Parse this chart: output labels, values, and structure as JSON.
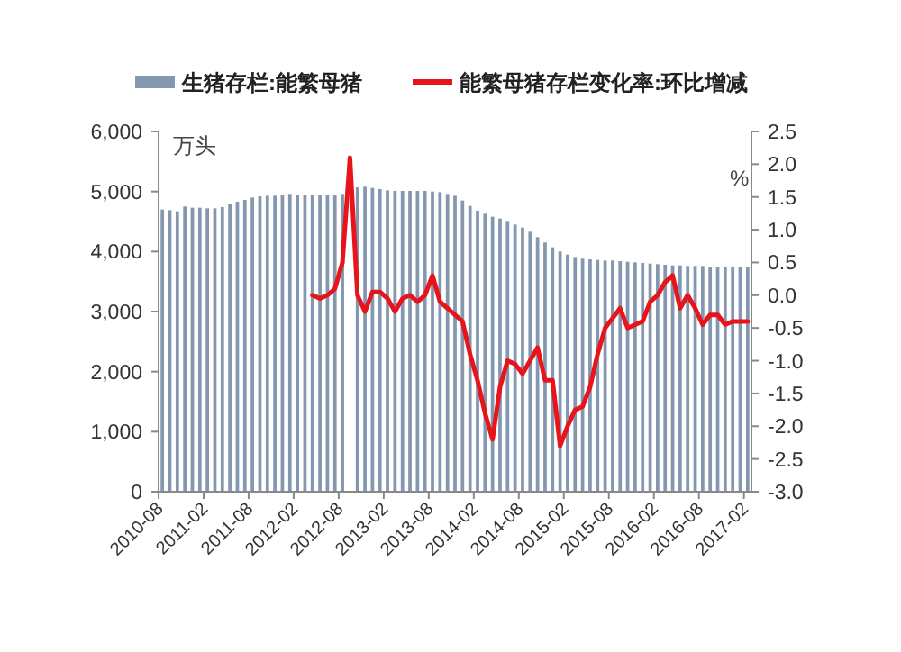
{
  "chart_data": {
    "type": "bar",
    "legend": "top",
    "grid": false,
    "ylabel": "万头",
    "y2label": "%",
    "categories": [
      "2010-08",
      null,
      null,
      null,
      null,
      null,
      "2011-02",
      null,
      null,
      null,
      null,
      null,
      "2011-08",
      null,
      null,
      null,
      null,
      null,
      "2012-02",
      null,
      null,
      null,
      null,
      null,
      "2012-08",
      null,
      null,
      null,
      null,
      null,
      "2013-02",
      null,
      null,
      null,
      null,
      null,
      "2013-08",
      null,
      null,
      null,
      null,
      null,
      "2014-02",
      null,
      null,
      null,
      null,
      null,
      "2014-08",
      null,
      null,
      null,
      null,
      null,
      "2015-02",
      null,
      null,
      null,
      null,
      null,
      "2015-08",
      null,
      null,
      null,
      null,
      null,
      "2016-02",
      null,
      null,
      null,
      null,
      null,
      "2016-08",
      null,
      null,
      null,
      null,
      null,
      "2017-02"
    ],
    "ylim": [
      0,
      6000
    ],
    "yticks": [
      {
        "value": 0,
        "label": "0"
      },
      {
        "value": 1000,
        "label": "1,000"
      },
      {
        "value": 2000,
        "label": "2,000"
      },
      {
        "value": 3000,
        "label": "3,000"
      },
      {
        "value": 4000,
        "label": "4,000"
      },
      {
        "value": 5000,
        "label": "5,000"
      },
      {
        "value": 6000,
        "label": "6,000"
      }
    ],
    "y2lim": [
      -3.0,
      2.5
    ],
    "y2ticks": [
      {
        "value": -3,
        "label": "-3.0"
      },
      {
        "value": -2.5,
        "label": "-2.5"
      },
      {
        "value": -2,
        "label": "-2.0"
      },
      {
        "value": -1.5,
        "label": "-1.5"
      },
      {
        "value": -1,
        "label": "-1.0"
      },
      {
        "value": -0.5,
        "label": "-0.5"
      },
      {
        "value": 0,
        "label": "0.0"
      },
      {
        "value": 0.5,
        "label": "0.5"
      },
      {
        "value": 1,
        "label": "1.0"
      },
      {
        "value": 1.5,
        "label": "1.5"
      },
      {
        "value": 2,
        "label": "2.0"
      },
      {
        "value": 2.5,
        "label": "2.5"
      }
    ],
    "series": [
      {
        "name": "生猪存栏:能繁母猪",
        "color": "#8497b0",
        "values": [
          4700,
          4690,
          4670,
          4750,
          4730,
          4730,
          4720,
          4720,
          4740,
          4800,
          4830,
          4860,
          4900,
          4920,
          4930,
          4930,
          4950,
          4960,
          4950,
          4940,
          4950,
          4950,
          4940,
          4950,
          4960,
          null,
          5070,
          5080,
          5060,
          5040,
          5020,
          5010,
          5010,
          5010,
          5010,
          5010,
          5000,
          4990,
          4960,
          4930,
          4850,
          4760,
          4680,
          4630,
          4580,
          4550,
          4510,
          4450,
          4400,
          4330,
          4240,
          4150,
          4070,
          4000,
          3950,
          3910,
          3880,
          3870,
          3860,
          3850,
          3850,
          3840,
          3830,
          3820,
          3810,
          3800,
          3790,
          3780,
          3770,
          3770,
          3760,
          3760,
          3760,
          3750,
          3750,
          3750,
          3740,
          3740,
          3740
        ]
      },
      {
        "name": "能繁母猪存栏变化率:环比增减",
        "type": "line",
        "axis": "y2",
        "color": "#e8141b",
        "values": [
          null,
          null,
          null,
          null,
          null,
          null,
          null,
          null,
          null,
          null,
          null,
          null,
          null,
          null,
          null,
          null,
          null,
          null,
          null,
          null,
          0.0,
          -0.05,
          0.0,
          0.1,
          0.5,
          2.1,
          0.0,
          -0.25,
          0.05,
          0.05,
          -0.05,
          -0.25,
          -0.05,
          0.0,
          -0.1,
          0.0,
          0.3,
          -0.1,
          -0.2,
          -0.3,
          -0.4,
          -0.9,
          -1.3,
          -1.8,
          -2.2,
          -1.4,
          -1.0,
          -1.05,
          -1.2,
          -1.0,
          -0.8,
          -1.3,
          -1.3,
          -2.3,
          -2.0,
          -1.75,
          -1.7,
          -1.4,
          -0.9,
          -0.5,
          -0.35,
          -0.2,
          -0.5,
          -0.45,
          -0.4,
          -0.1,
          0.0,
          0.2,
          0.3,
          -0.2,
          0.0,
          -0.2,
          -0.45,
          -0.3,
          -0.3,
          -0.45,
          -0.4,
          -0.4,
          -0.4
        ]
      }
    ]
  }
}
